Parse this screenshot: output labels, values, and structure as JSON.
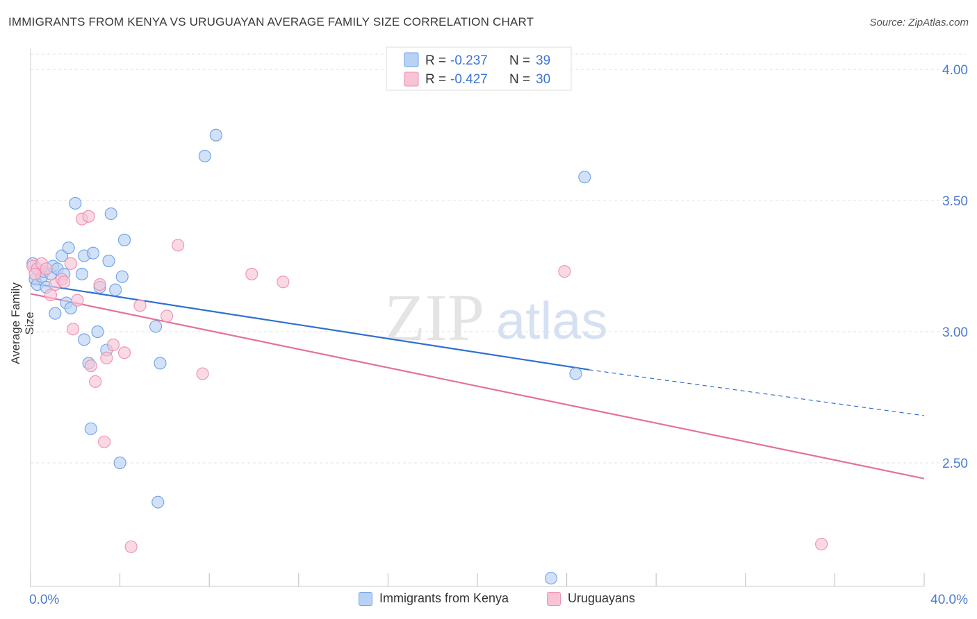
{
  "header": {
    "title": "IMMIGRANTS FROM KENYA VS URUGUAYAN AVERAGE FAMILY SIZE CORRELATION CHART",
    "source": "Source: ZipAtlas.com"
  },
  "watermark": {
    "zip": "ZIP",
    "atlas": "atlas"
  },
  "chart_data": {
    "type": "scatter",
    "title": "IMMIGRANTS FROM KENYA VS URUGUAYAN AVERAGE FAMILY SIZE CORRELATION CHART",
    "xlabel": "",
    "ylabel": "Average Family Size",
    "xlim": [
      0,
      40
    ],
    "ylim": [
      2.05,
      4.08
    ],
    "x_tick_labels": [
      "0.0%",
      "40.0%"
    ],
    "y_ticks": [
      4.0,
      3.5,
      3.0,
      2.5
    ],
    "y_tick_labels": [
      "4.00",
      "3.50",
      "3.00",
      "2.50"
    ],
    "legend_stats": [
      {
        "r_label": "R =",
        "r_value": "-0.237",
        "n_label": "N =",
        "n_value": "39"
      },
      {
        "r_label": "R =",
        "r_value": "-0.427",
        "n_label": "N =",
        "n_value": "30"
      }
    ],
    "series": [
      {
        "name": "Immigrants from Kenya",
        "color": "#6fa0e8",
        "fill": "#b9d1f3",
        "line_color": "#2f6fcf",
        "trend": {
          "x0": 0,
          "y0": 3.185,
          "x1": 25.0,
          "y1": 2.855,
          "x_dash_end": 40,
          "y_dash_end": 2.68
        },
        "points": [
          [
            0.1,
            3.26
          ],
          [
            0.2,
            3.2
          ],
          [
            0.3,
            3.18
          ],
          [
            0.5,
            3.21
          ],
          [
            0.6,
            3.23
          ],
          [
            0.7,
            3.17
          ],
          [
            0.9,
            3.22
          ],
          [
            1.0,
            3.25
          ],
          [
            1.1,
            3.07
          ],
          [
            1.2,
            3.24
          ],
          [
            1.4,
            3.29
          ],
          [
            1.5,
            3.22
          ],
          [
            1.6,
            3.11
          ],
          [
            1.7,
            3.32
          ],
          [
            1.8,
            3.09
          ],
          [
            2.0,
            3.49
          ],
          [
            2.3,
            3.22
          ],
          [
            2.4,
            2.97
          ],
          [
            2.4,
            3.29
          ],
          [
            2.6,
            2.88
          ],
          [
            2.7,
            2.63
          ],
          [
            2.8,
            3.3
          ],
          [
            3.0,
            3.0
          ],
          [
            3.1,
            3.17
          ],
          [
            3.4,
            2.93
          ],
          [
            3.5,
            3.27
          ],
          [
            3.6,
            3.45
          ],
          [
            3.8,
            3.16
          ],
          [
            4.0,
            2.5
          ],
          [
            4.1,
            3.21
          ],
          [
            4.2,
            3.35
          ],
          [
            5.6,
            3.02
          ],
          [
            5.7,
            2.35
          ],
          [
            5.8,
            2.88
          ],
          [
            7.8,
            3.67
          ],
          [
            8.3,
            3.75
          ],
          [
            24.8,
            3.59
          ],
          [
            24.4,
            2.84
          ],
          [
            23.3,
            2.06
          ]
        ]
      },
      {
        "name": "Uruguayans",
        "color": "#ee8fb0",
        "fill": "#f7c3d5",
        "line_color": "#e4709a",
        "trend": {
          "x0": 0,
          "y0": 3.145,
          "x1": 40,
          "y1": 2.44
        },
        "points": [
          [
            0.1,
            3.25
          ],
          [
            0.3,
            3.24
          ],
          [
            0.5,
            3.26
          ],
          [
            0.7,
            3.24
          ],
          [
            0.9,
            3.14
          ],
          [
            1.1,
            3.18
          ],
          [
            1.4,
            3.2
          ],
          [
            1.5,
            3.19
          ],
          [
            1.8,
            3.26
          ],
          [
            1.9,
            3.01
          ],
          [
            2.1,
            3.12
          ],
          [
            2.3,
            3.43
          ],
          [
            2.6,
            3.44
          ],
          [
            2.7,
            2.87
          ],
          [
            2.9,
            2.81
          ],
          [
            3.1,
            3.18
          ],
          [
            3.3,
            2.58
          ],
          [
            3.4,
            2.9
          ],
          [
            3.7,
            2.95
          ],
          [
            4.2,
            2.92
          ],
          [
            4.5,
            2.18
          ],
          [
            4.9,
            3.1
          ],
          [
            6.1,
            3.06
          ],
          [
            6.6,
            3.33
          ],
          [
            7.7,
            2.84
          ],
          [
            9.9,
            3.22
          ],
          [
            11.3,
            3.19
          ],
          [
            23.9,
            3.23
          ],
          [
            35.4,
            2.19
          ],
          [
            0.2,
            3.22
          ]
        ]
      }
    ]
  }
}
